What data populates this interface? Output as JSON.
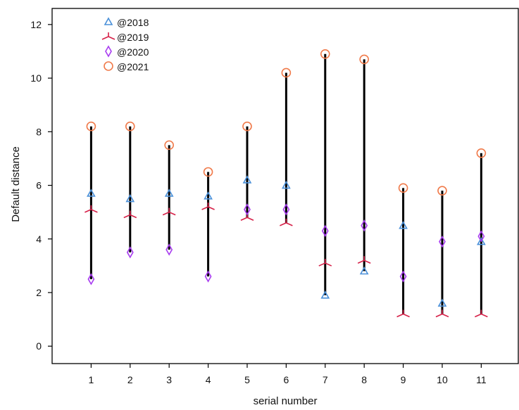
{
  "chart_data": {
    "type": "scatter",
    "title": "",
    "xlabel": "serial number",
    "ylabel": "Default distance",
    "xlim": [
      0,
      11.95
    ],
    "ylim": [
      -0.65,
      12.6
    ],
    "x": [
      1,
      2,
      3,
      4,
      5,
      6,
      7,
      8,
      9,
      10,
      11
    ],
    "x_tick_labels": [
      "1",
      "2",
      "3",
      "4",
      "5",
      "6",
      "7",
      "8",
      "9",
      "10",
      "11"
    ],
    "y_ticks": [
      0,
      2,
      4,
      6,
      8,
      10,
      12
    ],
    "y_tick_labels": [
      "0",
      "2",
      "4",
      "6",
      "8",
      "10",
      "12"
    ],
    "grid": false,
    "legend_position": "top-left",
    "range_lines": "vertical black line from the minimum to the maximum of the four years at each serial number",
    "series": [
      {
        "name": "@2018",
        "marker": "triangle",
        "color": "#4a90d9",
        "values": [
          5.7,
          5.5,
          5.7,
          5.6,
          6.2,
          6.0,
          1.9,
          2.8,
          4.5,
          1.6,
          3.9
        ]
      },
      {
        "name": "@2019",
        "marker": "tri-down",
        "color": "#d62048",
        "values": [
          5.1,
          4.9,
          5.0,
          5.2,
          4.8,
          4.6,
          3.1,
          3.2,
          1.2,
          1.2,
          1.2
        ]
      },
      {
        "name": "@2020",
        "marker": "diamond",
        "color": "#a83cf0",
        "values": [
          2.5,
          3.5,
          3.6,
          2.6,
          5.1,
          5.1,
          4.3,
          4.5,
          2.6,
          3.9,
          4.1
        ]
      },
      {
        "name": "@2021",
        "marker": "circle",
        "color": "#f07a4a",
        "values": [
          8.2,
          8.2,
          7.5,
          6.5,
          8.2,
          10.2,
          10.9,
          10.7,
          5.9,
          5.8,
          7.2
        ]
      }
    ]
  }
}
